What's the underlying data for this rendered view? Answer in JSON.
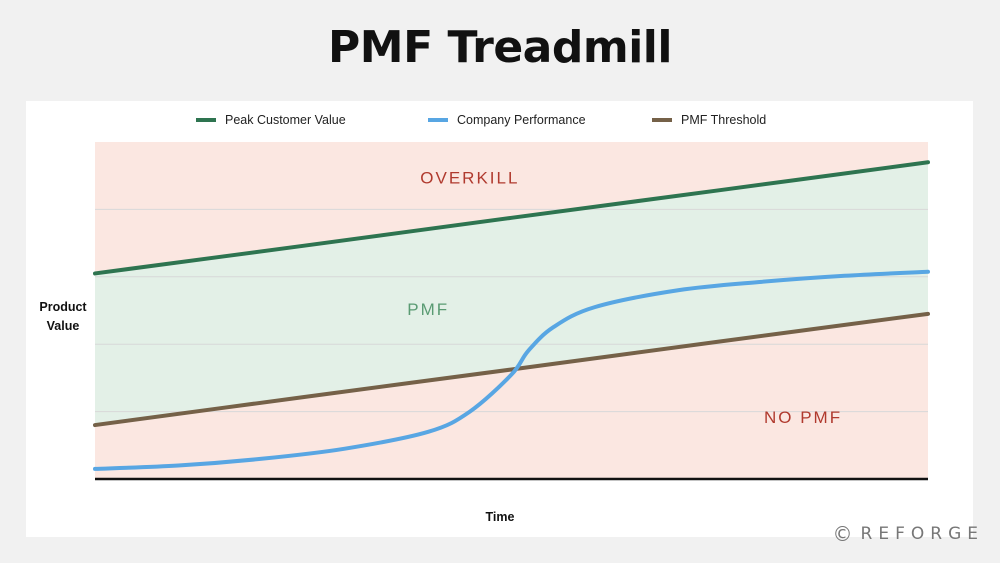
{
  "title": "PMF Treadmill",
  "brand": {
    "icon": "copyright-circle-icon",
    "glyph": "©",
    "name": "REFORGE"
  },
  "colors": {
    "background": "#f1f1f1",
    "card": "#ffffff",
    "overkill_fill": "#fbe7e1",
    "pmf_fill": "#e3f0e7",
    "no_pmf_fill": "#fbe7e1",
    "overkill_text": "#b03a2e",
    "pmf_text": "#5a9b73",
    "peak": "#2e7450",
    "performance": "#58a6e3",
    "threshold": "#756148",
    "baseline": "#111111",
    "grid": "#d8d8d8"
  },
  "chart_data": {
    "type": "line",
    "title": "PMF Treadmill",
    "xlabel": "Time",
    "ylabel": "Product Value",
    "xlim": [
      0,
      100
    ],
    "ylim": [
      0,
      100
    ],
    "grid": true,
    "legend_position": "top",
    "series": [
      {
        "name": "Peak Customer Value",
        "color": "#2e7450",
        "x": [
          0,
          25,
          50,
          75,
          100
        ],
        "y": [
          61,
          69.2,
          77.5,
          85.7,
          94
        ]
      },
      {
        "name": "Company Performance",
        "color": "#58a6e3",
        "x": [
          0,
          10,
          20,
          30,
          40,
          45,
          50,
          52,
          55,
          60,
          70,
          80,
          90,
          100
        ],
        "y": [
          3,
          4,
          6,
          9,
          14,
          20,
          31,
          38,
          45,
          51,
          56,
          58.5,
          60.3,
          61.5
        ]
      },
      {
        "name": "PMF Threshold",
        "color": "#756148",
        "x": [
          0,
          25,
          50,
          75,
          100
        ],
        "y": [
          16,
          24.3,
          32.5,
          40.8,
          49
        ]
      }
    ],
    "regions": [
      {
        "label": "OVERKILL",
        "x": 45,
        "y": 89
      },
      {
        "label": "PMF",
        "x": 40,
        "y": 50
      },
      {
        "label": "NO PMF",
        "x": 85,
        "y": 18
      }
    ]
  }
}
